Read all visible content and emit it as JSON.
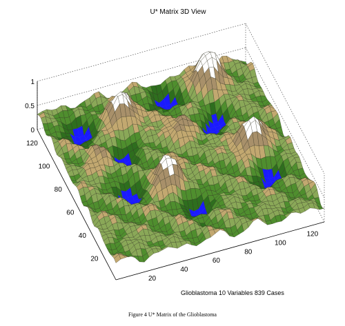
{
  "chart_data": {
    "type": "surface",
    "title": "U* Matrix 3D View",
    "annotation": "Glioblastoma 10 Variables 839 Cases",
    "x_ticks": [
      20,
      40,
      60,
      80,
      100,
      120
    ],
    "y_ticks": [
      20,
      40,
      60,
      80,
      100,
      120
    ],
    "z_ticks": [
      "0",
      "0.5",
      "1"
    ],
    "xlim": [
      0,
      130
    ],
    "ylim": [
      0,
      130
    ],
    "zlim": [
      0,
      1
    ],
    "grid": true,
    "colormap": [
      "#1a1aff",
      "#2e6e1e",
      "#4f8e2e",
      "#8aa858",
      "#c2a870",
      "#a8906a",
      "#ffffff"
    ],
    "peaks": [
      {
        "x": 44,
        "y": 108,
        "z": 0.85
      },
      {
        "x": 102,
        "y": 118,
        "z": 0.9
      },
      {
        "x": 52,
        "y": 50,
        "z": 0.8
      },
      {
        "x": 108,
        "y": 62,
        "z": 0.85
      },
      {
        "x": 72,
        "y": 86,
        "z": 0.55
      },
      {
        "x": 20,
        "y": 80,
        "z": 0.5
      }
    ],
    "basins": [
      {
        "x": 20,
        "y": 112,
        "z": 0.0
      },
      {
        "x": 76,
        "y": 118,
        "z": 0.0
      },
      {
        "x": 38,
        "y": 84,
        "z": 0.0
      },
      {
        "x": 96,
        "y": 92,
        "z": 0.0
      },
      {
        "x": 30,
        "y": 56,
        "z": 0.0
      },
      {
        "x": 62,
        "y": 32,
        "z": 0.0
      },
      {
        "x": 112,
        "y": 40,
        "z": 0.0
      }
    ]
  },
  "caption": "Figure 4  U* Matrix of the Glioblastoma"
}
